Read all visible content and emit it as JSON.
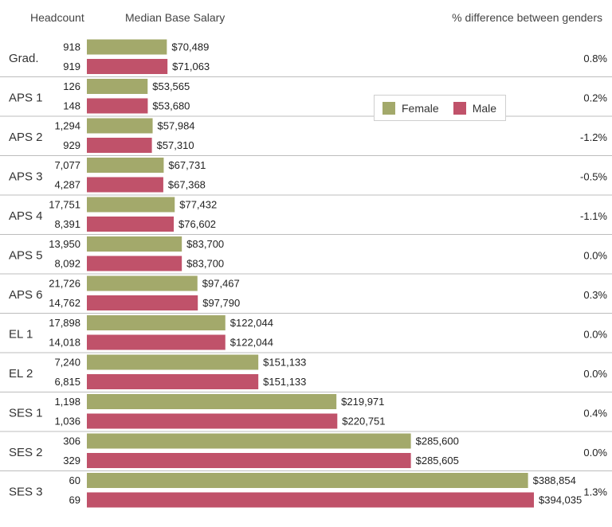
{
  "chart_data": {
    "type": "bar",
    "orientation": "horizontal",
    "headers": {
      "headcount": "Headcount",
      "salary": "Median Base Salary",
      "difference": "% difference between genders"
    },
    "legend": [
      {
        "name": "Female",
        "color": "#a3a96b"
      },
      {
        "name": "Male",
        "color": "#c0526a"
      }
    ],
    "xlim": [
      0,
      394035
    ],
    "groups": [
      {
        "label": "Grad.",
        "female": {
          "headcount": "918",
          "value": 70489,
          "value_label": "$70,489"
        },
        "male": {
          "headcount": "919",
          "value": 71063,
          "value_label": "$71,063"
        },
        "difference": "0.8%"
      },
      {
        "label": "APS 1",
        "female": {
          "headcount": "126",
          "value": 53565,
          "value_label": "$53,565"
        },
        "male": {
          "headcount": "148",
          "value": 53680,
          "value_label": "$53,680"
        },
        "difference": "0.2%"
      },
      {
        "label": "APS 2",
        "female": {
          "headcount": "1,294",
          "value": 57984,
          "value_label": "$57,984"
        },
        "male": {
          "headcount": "929",
          "value": 57310,
          "value_label": "$57,310"
        },
        "difference": "-1.2%"
      },
      {
        "label": "APS 3",
        "female": {
          "headcount": "7,077",
          "value": 67731,
          "value_label": "$67,731"
        },
        "male": {
          "headcount": "4,287",
          "value": 67368,
          "value_label": "$67,368"
        },
        "difference": "-0.5%"
      },
      {
        "label": "APS 4",
        "female": {
          "headcount": "17,751",
          "value": 77432,
          "value_label": "$77,432"
        },
        "male": {
          "headcount": "8,391",
          "value": 76602,
          "value_label": "$76,602"
        },
        "difference": "-1.1%"
      },
      {
        "label": "APS 5",
        "female": {
          "headcount": "13,950",
          "value": 83700,
          "value_label": "$83,700"
        },
        "male": {
          "headcount": "8,092",
          "value": 83700,
          "value_label": "$83,700"
        },
        "difference": "0.0%"
      },
      {
        "label": "APS 6",
        "female": {
          "headcount": "21,726",
          "value": 97467,
          "value_label": "$97,467"
        },
        "male": {
          "headcount": "14,762",
          "value": 97790,
          "value_label": "$97,790"
        },
        "difference": "0.3%"
      },
      {
        "label": "EL 1",
        "female": {
          "headcount": "17,898",
          "value": 122044,
          "value_label": "$122,044"
        },
        "male": {
          "headcount": "14,018",
          "value": 122044,
          "value_label": "$122,044"
        },
        "difference": "0.0%"
      },
      {
        "label": "EL 2",
        "female": {
          "headcount": "7,240",
          "value": 151133,
          "value_label": "$151,133"
        },
        "male": {
          "headcount": "6,815",
          "value": 151133,
          "value_label": "$151,133"
        },
        "difference": "0.0%"
      },
      {
        "label": "SES 1",
        "female": {
          "headcount": "1,198",
          "value": 219971,
          "value_label": "$219,971"
        },
        "male": {
          "headcount": "1,036",
          "value": 220751,
          "value_label": "$220,751"
        },
        "difference": "0.4%"
      },
      {
        "label": "SES 2",
        "female": {
          "headcount": "306",
          "value": 285600,
          "value_label": "$285,600"
        },
        "male": {
          "headcount": "329",
          "value": 285605,
          "value_label": "$285,605"
        },
        "difference": "0.0%"
      },
      {
        "label": "SES 3",
        "female": {
          "headcount": "60",
          "value": 388854,
          "value_label": "$388,854"
        },
        "male": {
          "headcount": "69",
          "value": 394035,
          "value_label": "$394,035"
        },
        "difference": "1.3%"
      }
    ]
  }
}
